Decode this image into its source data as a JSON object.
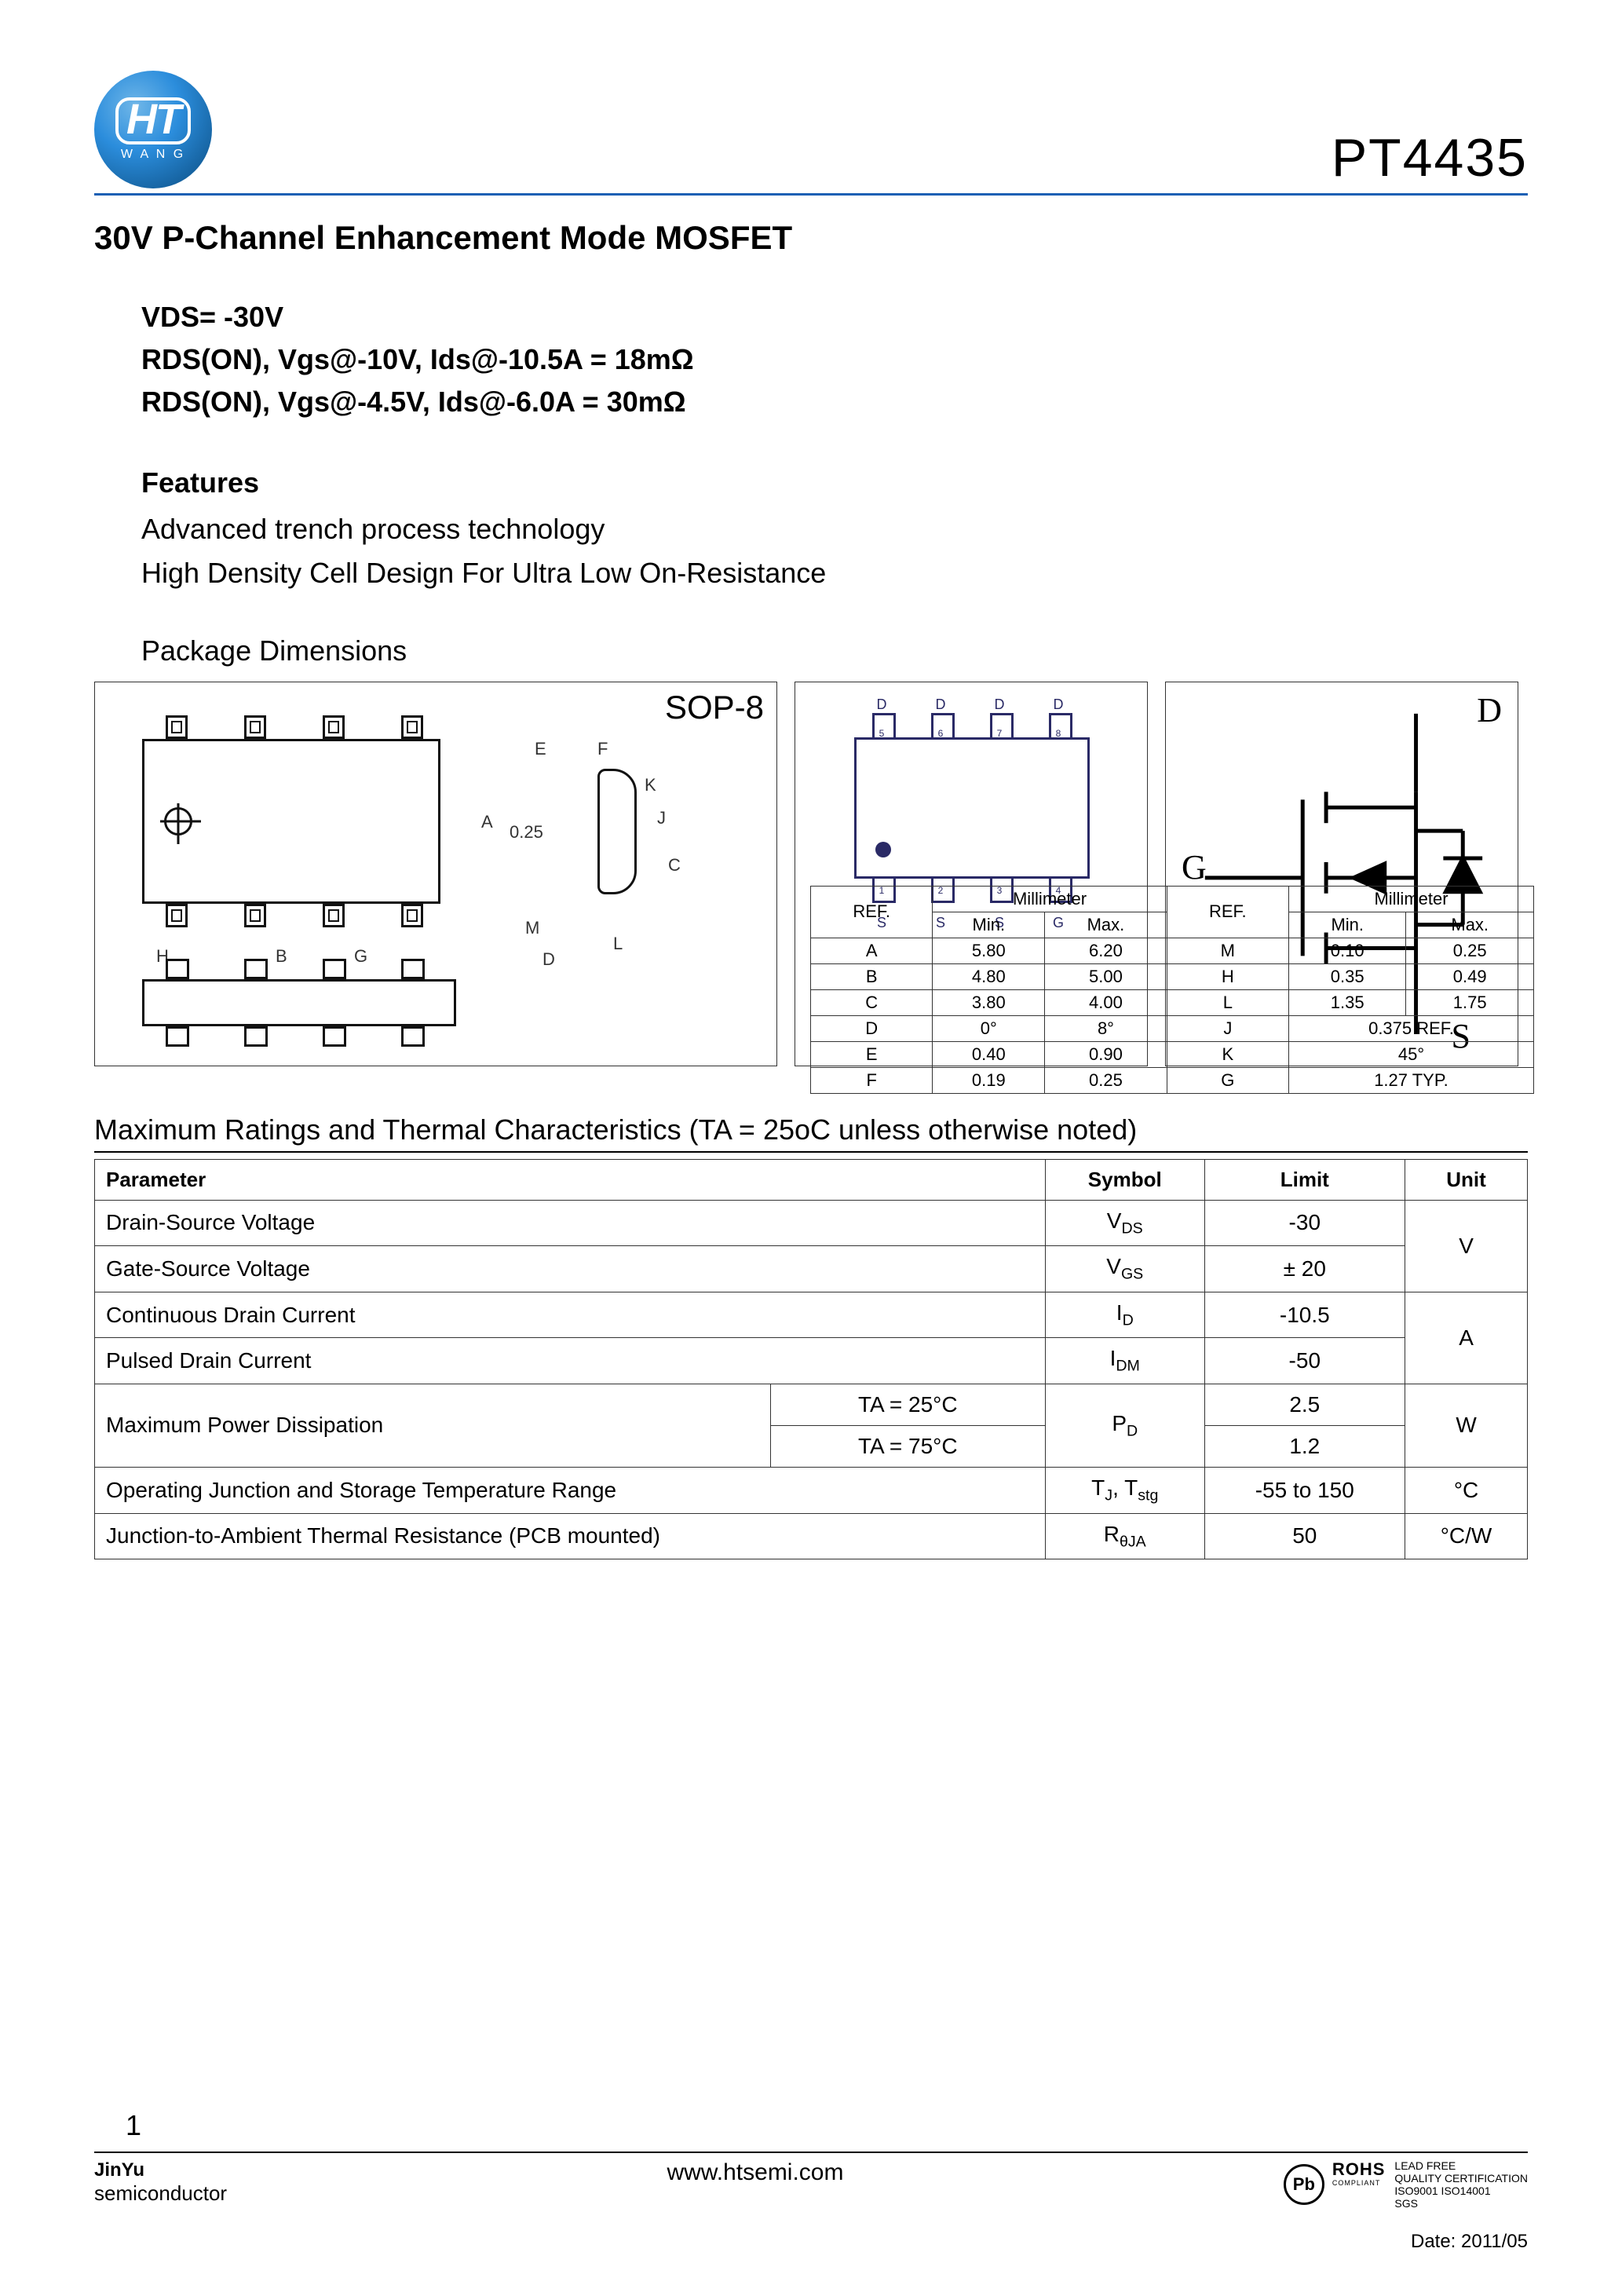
{
  "header": {
    "logo_main": "HT",
    "logo_sub": "W A N G",
    "part_number": "PT4435"
  },
  "title": "30V  P-Channel  Enhancement  Mode  MOSFET",
  "specs": {
    "l1": "VDS= -30V",
    "l2": "RDS(ON), Vgs@-10V, Ids@-10.5A = 18mΩ",
    "l3": "RDS(ON), Vgs@-4.5V, Ids@-6.0A = 30mΩ"
  },
  "features": {
    "heading": "Features",
    "f1": "Advanced trench process technology",
    "f2": "High Density Cell Design For Ultra Low On-Resistance"
  },
  "package_label": "Package Dimensions",
  "sop8": "SOP-8",
  "pinout": {
    "top": [
      "D",
      "D",
      "D",
      "D"
    ],
    "top_nums": [
      "5",
      "6",
      "7",
      "8"
    ],
    "bot": [
      "S",
      "S",
      "S",
      "G"
    ],
    "bot_nums": [
      "1",
      "2",
      "3",
      "4"
    ]
  },
  "symbol_terms": {
    "d": "D",
    "g": "G",
    "s": "S"
  },
  "dim_labels": {
    "a": "A",
    "b": "B",
    "g": "G",
    "h": "H",
    "e": "E",
    "f": "F",
    "k": "K",
    "j": "J",
    "c": "C",
    "m": "M",
    "l": "L",
    "d": "D",
    "val025": "0.25"
  },
  "dim_table": {
    "header_mm": "Millimeter",
    "header_ref": "REF.",
    "header_min": "Min.",
    "header_max": "Max.",
    "rows_left": [
      {
        "r": "A",
        "min": "5.80",
        "max": "6.20"
      },
      {
        "r": "B",
        "min": "4.80",
        "max": "5.00"
      },
      {
        "r": "C",
        "min": "3.80",
        "max": "4.00"
      },
      {
        "r": "D",
        "min": "0°",
        "max": "8°"
      },
      {
        "r": "E",
        "min": "0.40",
        "max": "0.90"
      },
      {
        "r": "F",
        "min": "0.19",
        "max": "0.25"
      }
    ],
    "rows_right": [
      {
        "r": "M",
        "min": "0.10",
        "max": "0.25"
      },
      {
        "r": "H",
        "min": "0.35",
        "max": "0.49"
      },
      {
        "r": "L",
        "min": "1.35",
        "max": "1.75"
      },
      {
        "r": "J",
        "span": "0.375 REF."
      },
      {
        "r": "K",
        "span": "45°"
      },
      {
        "r": "G",
        "span": "1.27 TYP."
      }
    ]
  },
  "ratings_title": "Maximum Ratings and Thermal Characteristics (TA = 25oC unless otherwise noted)",
  "ratings": {
    "headers": {
      "param": "Parameter",
      "symbol": "Symbol",
      "limit": "Limit",
      "unit": "Unit"
    },
    "rows": [
      {
        "param": "Drain-Source Voltage",
        "sym": "V",
        "sub": "DS",
        "limit": "-30",
        "unit": "V",
        "unit_rowspan": 2
      },
      {
        "param": "Gate-Source Voltage",
        "sym": "V",
        "sub": "GS",
        "limit": "± 20"
      },
      {
        "param": "Continuous Drain Current",
        "sym": "I",
        "sub": "D",
        "limit": "-10.5",
        "unit": "A",
        "unit_rowspan": 2
      },
      {
        "param": "Pulsed Drain Current",
        "sym": "I",
        "sub": "DM",
        "limit": "-50"
      },
      {
        "param": "Maximum Power Dissipation",
        "cond": "TA = 25°C",
        "sym": "P",
        "sub": "D",
        "limit": "2.5",
        "unit": "W",
        "unit_rowspan": 2,
        "param_rowspan": 2,
        "sym_rowspan": 2
      },
      {
        "cond": "TA = 75°C",
        "limit": "1.2"
      },
      {
        "param": "Operating Junction and Storage Temperature Range",
        "sym_html": "T<span class='sub'>J</span>, T<span class='sub'>stg</span>",
        "limit": "-55 to 150",
        "unit": "°C"
      },
      {
        "param": "Junction-to-Ambient Thermal Resistance (PCB mounted)",
        "sym": "R",
        "sub": "θJA",
        "limit": "50",
        "unit": "°C/W"
      }
    ]
  },
  "footer": {
    "page": "1",
    "company_bold": "JinYu",
    "company_line": "semiconductor",
    "url": "www.htsemi.com",
    "pb": "Pb",
    "rohs": "ROHS",
    "rohs_sub": "COMPLIANT",
    "cert1": "LEAD FREE",
    "cert2": "QUALITY CERTIFICATION",
    "cert3": "ISO9001 ISO14001",
    "cert4": "SGS",
    "date": "Date: 2011/05"
  },
  "colors": {
    "rule": "#1a5fb4",
    "ink": "#111111",
    "pinout": "#2a2a66"
  }
}
